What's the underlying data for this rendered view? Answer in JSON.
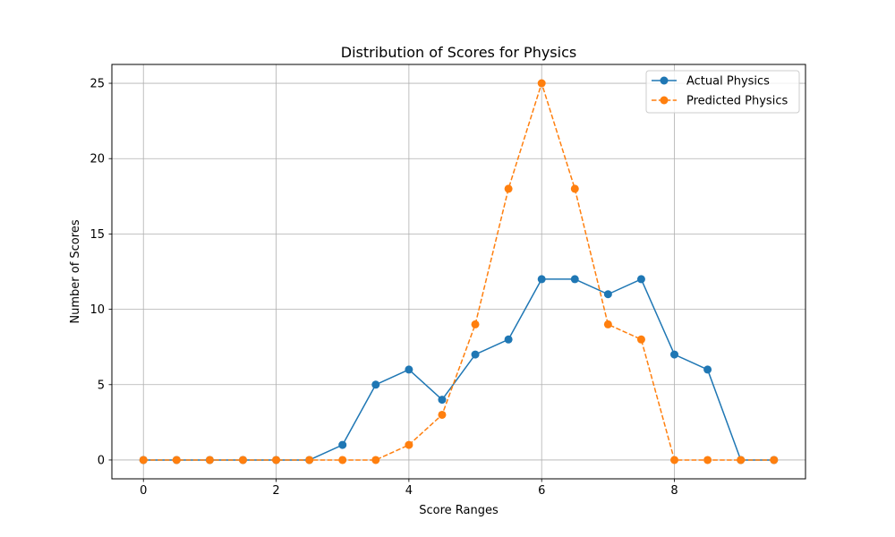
{
  "chart_data": {
    "type": "line",
    "title": "Distribution of Scores for Physics",
    "xlabel": "Score Ranges",
    "ylabel": "Number of Scores",
    "xlim": [
      -0.475,
      9.975
    ],
    "ylim": [
      -1.25,
      26.25
    ],
    "xticks": [
      0,
      2,
      4,
      6,
      8
    ],
    "yticks": [
      0,
      5,
      10,
      15,
      20,
      25
    ],
    "grid": true,
    "legend_position": "top-right",
    "x": [
      0,
      0.5,
      1,
      1.5,
      2,
      2.5,
      3,
      3.5,
      4,
      4.5,
      5,
      5.5,
      6,
      6.5,
      7,
      7.5,
      8,
      8.5,
      9,
      9.5
    ],
    "series": [
      {
        "name": "Actual Physics",
        "color": "#1f77b4",
        "linestyle": "solid",
        "marker": "circle",
        "values": [
          0,
          0,
          0,
          0,
          0,
          0,
          1,
          5,
          6,
          4,
          7,
          8,
          12,
          12,
          11,
          12,
          7,
          6,
          0,
          0
        ]
      },
      {
        "name": "Predicted Physics",
        "color": "#ff7f0e",
        "linestyle": "dashed",
        "marker": "circle",
        "values": [
          0,
          0,
          0,
          0,
          0,
          0,
          0,
          0,
          1,
          3,
          9,
          18,
          25,
          18,
          9,
          8,
          0,
          0,
          0,
          0
        ]
      }
    ]
  }
}
